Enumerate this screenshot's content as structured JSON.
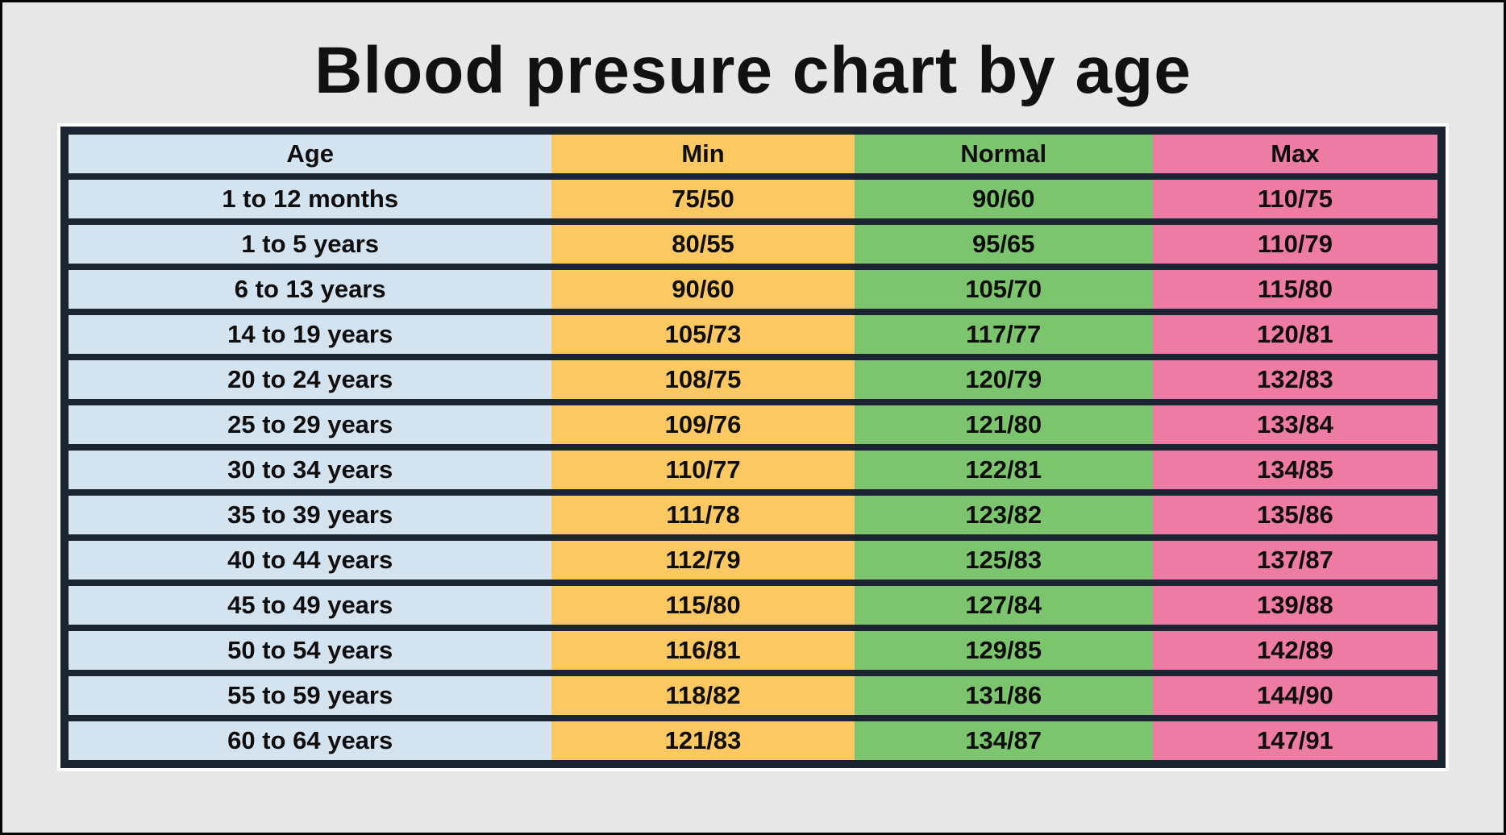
{
  "title": "Blood presure chart by age",
  "colors": {
    "background": "#e7e7e7",
    "outer_frame": "#050505",
    "table_border": "#1b2531",
    "age_column": "#d4e3f0",
    "min_column": "#fcc862",
    "normal_column": "#7dc46f",
    "max_column": "#ee7ba4",
    "text": "#0e0e0e"
  },
  "chart_data": {
    "type": "table",
    "title": "Blood presure chart by age",
    "columns": [
      "Age",
      "Min",
      "Normal",
      "Max"
    ],
    "rows": [
      [
        "1 to 12 months",
        "75/50",
        "90/60",
        "110/75"
      ],
      [
        "1 to 5 years",
        "80/55",
        "95/65",
        "110/79"
      ],
      [
        "6 to 13 years",
        "90/60",
        "105/70",
        "115/80"
      ],
      [
        "14 to 19 years",
        "105/73",
        "117/77",
        "120/81"
      ],
      [
        "20 to 24 years",
        "108/75",
        "120/79",
        "132/83"
      ],
      [
        "25 to 29 years",
        "109/76",
        "121/80",
        "133/84"
      ],
      [
        "30 to 34 years",
        "110/77",
        "122/81",
        "134/85"
      ],
      [
        "35 to 39 years",
        "111/78",
        "123/82",
        "135/86"
      ],
      [
        "40 to 44 years",
        "112/79",
        "125/83",
        "137/87"
      ],
      [
        "45 to 49 years",
        "115/80",
        "127/84",
        "139/88"
      ],
      [
        "50 to 54 years",
        "116/81",
        "129/85",
        "142/89"
      ],
      [
        "55 to 59 years",
        "118/82",
        "131/86",
        "144/90"
      ],
      [
        "60 to 64 years",
        "121/83",
        "134/87",
        "147/91"
      ]
    ]
  }
}
